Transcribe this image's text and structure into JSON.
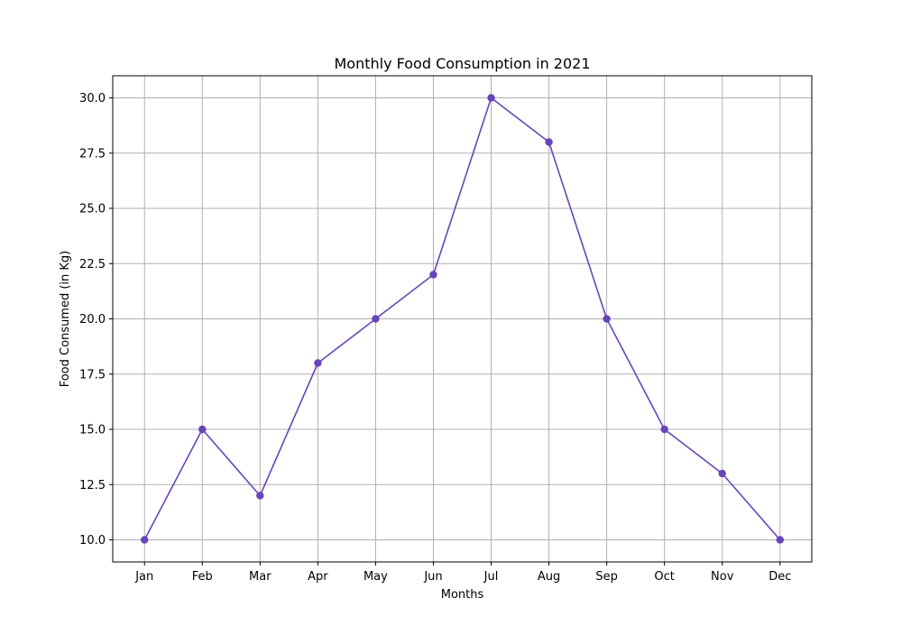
{
  "chart_data": {
    "type": "line",
    "title": "Monthly Food Consumption in 2021",
    "xlabel": "Months",
    "ylabel": "Food Consumed (in Kg)",
    "categories": [
      "Jan",
      "Feb",
      "Mar",
      "Apr",
      "May",
      "Jun",
      "Jul",
      "Aug",
      "Sep",
      "Oct",
      "Nov",
      "Dec"
    ],
    "series": [
      {
        "values": [
          10,
          15,
          12,
          18,
          20,
          22,
          30,
          28,
          20,
          15,
          13,
          10
        ],
        "color": "#6a44b8",
        "marker": "circle"
      }
    ],
    "ylim": [
      9.0,
      31.0
    ],
    "yticks": [
      10.0,
      12.5,
      15.0,
      17.5,
      20.0,
      22.5,
      25.0,
      27.5,
      30.0
    ],
    "ytick_labels": [
      "10.0",
      "12.5",
      "15.0",
      "17.5",
      "20.0",
      "22.5",
      "25.0",
      "27.5",
      "30.0"
    ],
    "grid": true,
    "grid_color": "#b0b0b0"
  }
}
